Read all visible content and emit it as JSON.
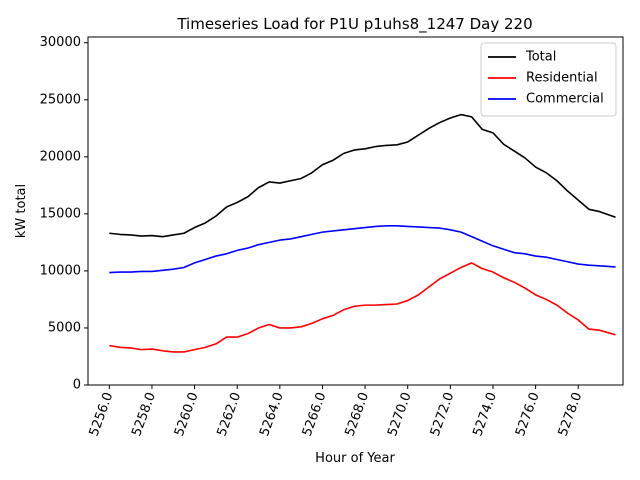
{
  "chart_data": {
    "type": "line",
    "title": "Timeseries Load for P1U p1uhs8_1247  Day 220",
    "xlabel": "Hour of Year",
    "ylabel": "kW total",
    "xlim": [
      5255.0,
      5280.1
    ],
    "ylim": [
      0,
      30500
    ],
    "xticks": [
      5256,
      5258,
      5260,
      5262,
      5264,
      5266,
      5268,
      5270,
      5272,
      5274,
      5276,
      5278
    ],
    "xtick_labels": [
      "5256.0",
      "5258.0",
      "5260.0",
      "5262.0",
      "5264.0",
      "5266.0",
      "5268.0",
      "5270.0",
      "5272.0",
      "5274.0",
      "5276.0",
      "5278.0"
    ],
    "yticks": [
      0,
      5000,
      10000,
      15000,
      20000,
      25000,
      30000
    ],
    "ytick_labels": [
      "0",
      "5000",
      "10000",
      "15000",
      "20000",
      "25000",
      "30000"
    ],
    "legend_position": "top-right",
    "x": [
      5256.0,
      5256.5,
      5257.0,
      5257.5,
      5258.0,
      5258.5,
      5259.0,
      5259.5,
      5260.0,
      5260.5,
      5261.0,
      5261.5,
      5262.0,
      5262.5,
      5263.0,
      5263.5,
      5264.0,
      5264.5,
      5265.0,
      5265.5,
      5266.0,
      5266.5,
      5267.0,
      5267.5,
      5268.0,
      5268.5,
      5269.0,
      5269.5,
      5270.0,
      5270.5,
      5271.0,
      5271.5,
      5272.0,
      5272.5,
      5273.0,
      5273.5,
      5274.0,
      5274.5,
      5275.0,
      5275.5,
      5276.0,
      5276.5,
      5277.0,
      5277.5,
      5278.0,
      5278.5,
      5279.0,
      5279.75
    ],
    "series": [
      {
        "name": "Total",
        "color": "#000000",
        "values": [
          13300,
          13200,
          13150,
          13050,
          13100,
          13000,
          13150,
          13300,
          13800,
          14200,
          14800,
          15600,
          16000,
          16500,
          17300,
          17800,
          17700,
          17900,
          18100,
          18600,
          19300,
          19700,
          20300,
          20600,
          20700,
          20900,
          21000,
          21050,
          21300,
          21900,
          22500,
          23000,
          23400,
          23700,
          23500,
          22400,
          22100,
          21100,
          20500,
          19900,
          19100,
          18600,
          17900,
          17000,
          16200,
          15400,
          15200,
          14700
        ]
      },
      {
        "name": "Residential",
        "color": "#ff0000",
        "values": [
          3450,
          3300,
          3250,
          3100,
          3150,
          3000,
          2900,
          2900,
          3100,
          3300,
          3600,
          4200,
          4200,
          4500,
          5000,
          5300,
          5000,
          5000,
          5100,
          5400,
          5800,
          6100,
          6600,
          6900,
          7000,
          7000,
          7050,
          7100,
          7400,
          7900,
          8600,
          9300,
          9800,
          10300,
          10700,
          10200,
          9900,
          9400,
          9000,
          8500,
          7900,
          7500,
          7000,
          6300,
          5700,
          4900,
          4800,
          4400
        ]
      },
      {
        "name": "Commercial",
        "color": "#0000ff",
        "values": [
          9850,
          9900,
          9900,
          9950,
          9950,
          10050,
          10150,
          10300,
          10700,
          11000,
          11300,
          11500,
          11800,
          12000,
          12300,
          12500,
          12700,
          12800,
          13000,
          13200,
          13400,
          13500,
          13600,
          13700,
          13800,
          13900,
          13950,
          13950,
          13900,
          13850,
          13800,
          13750,
          13600,
          13400,
          13000,
          12600,
          12200,
          11900,
          11600,
          11500,
          11300,
          11200,
          11000,
          10800,
          10600,
          10500,
          10450,
          10350
        ]
      }
    ]
  }
}
